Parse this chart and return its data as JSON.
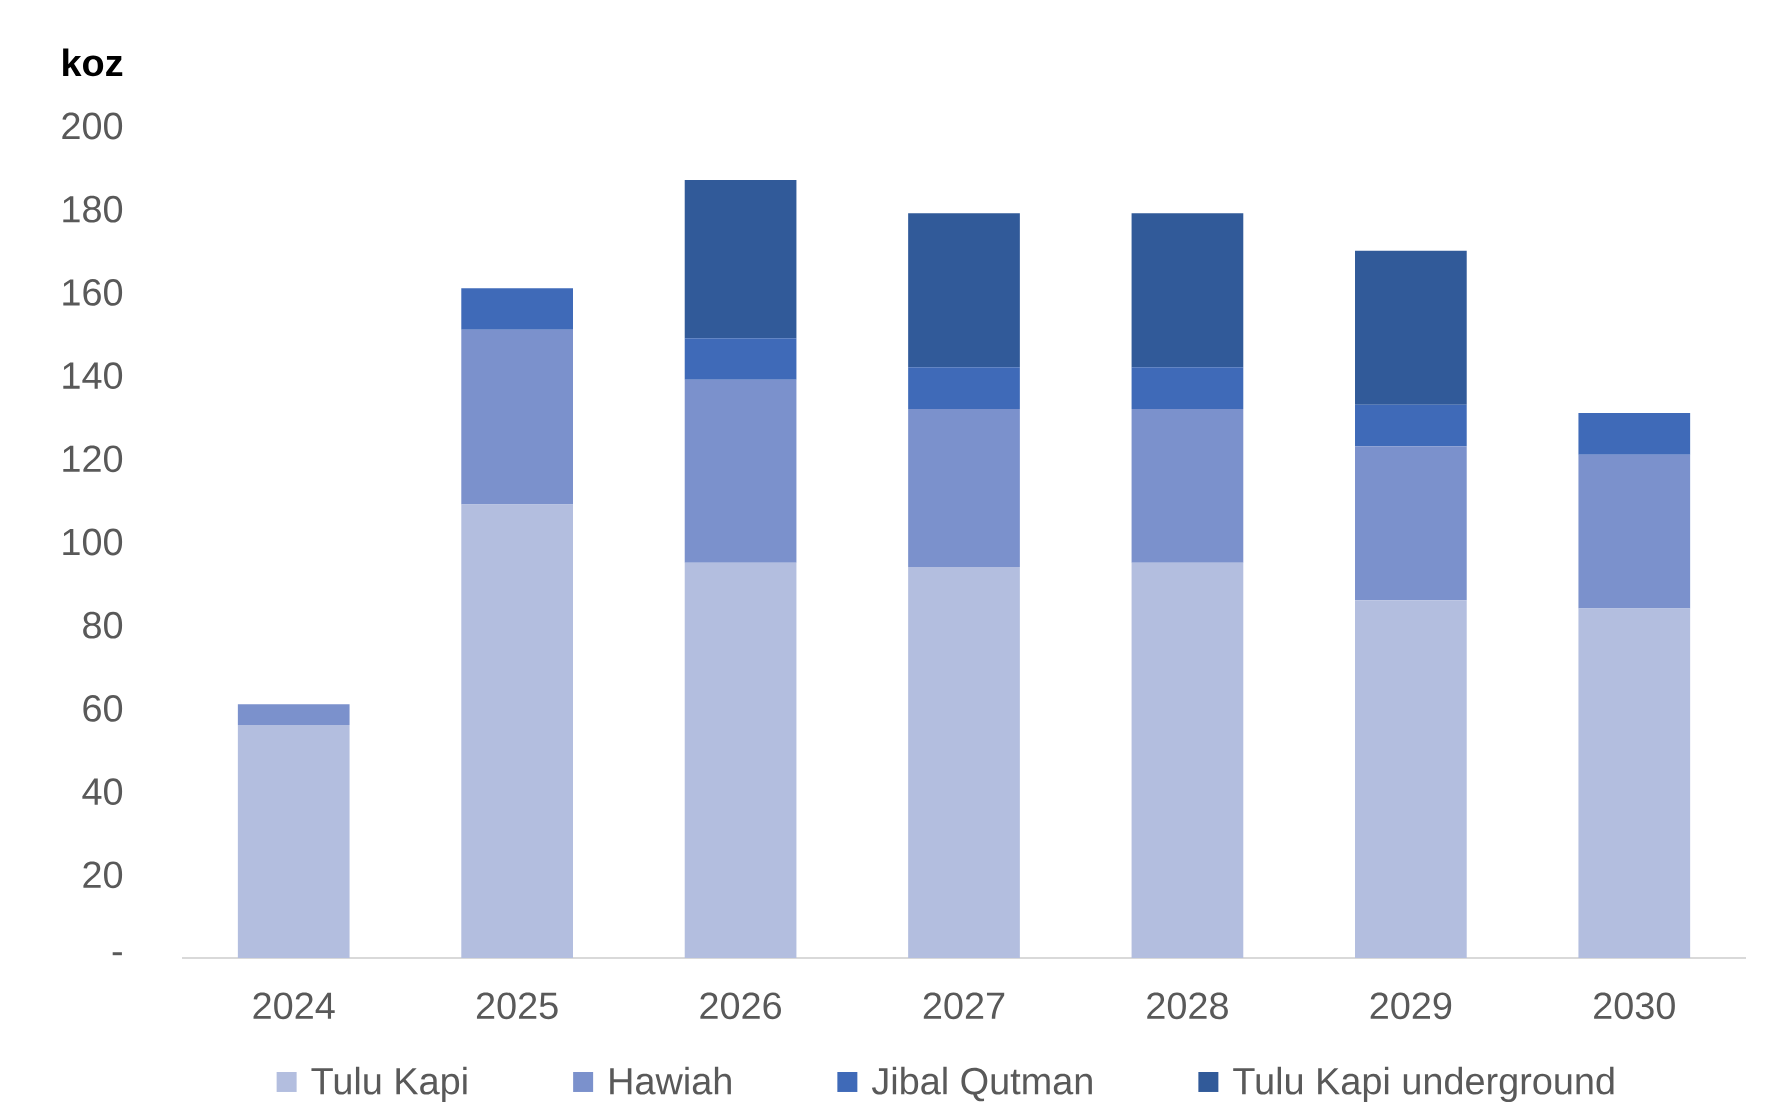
{
  "chart_data": {
    "type": "bar",
    "stacked": true,
    "ylabel": "koz",
    "categories": [
      "2024",
      "2025",
      "2026",
      "2027",
      "2028",
      "2029",
      "2030"
    ],
    "series": [
      {
        "name": "Tulu Kapi",
        "color": "#b3bedf",
        "values": [
          56,
          109,
          95,
          94,
          95,
          86,
          84
        ]
      },
      {
        "name": "Hawiah",
        "color": "#7b91cc",
        "values": [
          5,
          42,
          44,
          38,
          37,
          37,
          37
        ]
      },
      {
        "name": "Jibal Qutman",
        "color": "#3f6ab8",
        "values": [
          null,
          10,
          10,
          10,
          10,
          10,
          10
        ]
      },
      {
        "name": "Tulu Kapi underground",
        "color": "#315a99",
        "values": [
          null,
          null,
          38,
          37,
          37,
          37,
          null
        ]
      }
    ],
    "ylim": [
      0,
      200
    ],
    "yticks": [
      {
        "value": 0,
        "label": "-"
      },
      20,
      40,
      60,
      80,
      100,
      120,
      140,
      160,
      180,
      200
    ],
    "legend": "bottom"
  }
}
